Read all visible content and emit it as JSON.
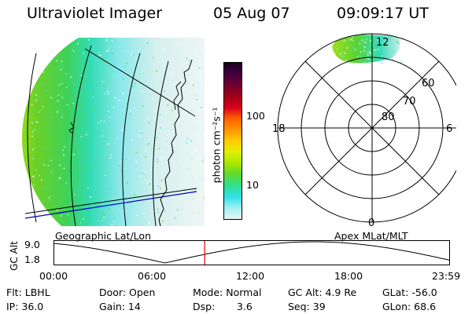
{
  "header": {
    "instrument": "Ultraviolet Imager",
    "date": "05 Aug 07",
    "time": "09:09:17 UT"
  },
  "colorbar": {
    "unit_label": "photon cm⁻²s⁻¹",
    "ticks": [
      "100",
      "10"
    ],
    "colors": [
      "#1a0020",
      "#400040",
      "#700030",
      "#a00018",
      "#d8001c",
      "#ff6000",
      "#ff9400",
      "#ffcc00",
      "#e0f000",
      "#a8e800",
      "#60d830",
      "#30e090",
      "#30e0e8",
      "#a0f0f0",
      "#e8f4f4"
    ]
  },
  "geo_panel": {
    "label": "Geographic Lat/Lon"
  },
  "polar_panel": {
    "label": "Apex MLat/MLT",
    "mlt_labels": {
      "top": "12",
      "left": "18",
      "right": "6",
      "bottom": "0"
    },
    "lat_labels": [
      "60",
      "70",
      "80"
    ]
  },
  "altitude_strip": {
    "axis_label": "GC Alt",
    "y_ticks": [
      "9.0",
      "1.8"
    ],
    "x_ticks": [
      "00:00",
      "06:00",
      "12:00",
      "18:00",
      "23:59"
    ],
    "current_time_marker_hours": 9.15,
    "marker_color": "#e00000"
  },
  "status": {
    "filter": "Flt: LBHL",
    "door": "Door: Open",
    "mode": "Mode: Normal",
    "gc_alt": "GC Alt: 4.9 Re",
    "glat": "GLat: -56.0",
    "ip": "IP: 36.0",
    "gain": "Gain: 14",
    "dsp_label": "Dsp:",
    "dsp_value": "3.6",
    "seq": "Seq: 39",
    "glon": "GLon: 68.6"
  }
}
